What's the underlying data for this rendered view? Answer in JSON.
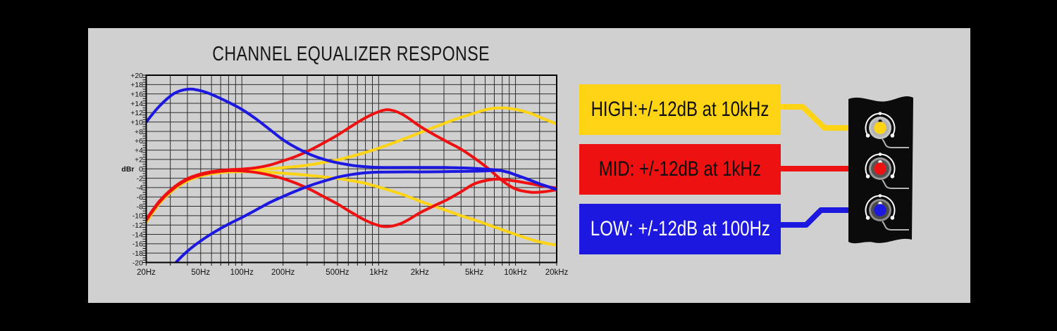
{
  "page": {
    "background": "#000000",
    "panel_bg": "#d0d0d0"
  },
  "chart_data": {
    "type": "line",
    "title": "CHANNEL EQUALIZER RESPONSE",
    "ylabel": "dBr",
    "x_scale": "log",
    "xlim": [
      20,
      20000
    ],
    "ylim": [
      -20,
      20
    ],
    "grid": true,
    "x_ticks": [
      {
        "f": 20,
        "label": "20Hz"
      },
      {
        "f": 50,
        "label": "50Hz"
      },
      {
        "f": 100,
        "label": "100Hz"
      },
      {
        "f": 200,
        "label": "200Hz"
      },
      {
        "f": 500,
        "label": "500Hz"
      },
      {
        "f": 1000,
        "label": "1kHz"
      },
      {
        "f": 2000,
        "label": "2kHz"
      },
      {
        "f": 5000,
        "label": "5kHz"
      },
      {
        "f": 10000,
        "label": "10kHz"
      },
      {
        "f": 20000,
        "label": "20kHz"
      }
    ],
    "y_ticks": [
      {
        "v": 20,
        "label": "+20"
      },
      {
        "v": 18,
        "label": "+18"
      },
      {
        "v": 16,
        "label": "+16"
      },
      {
        "v": 14,
        "label": "+14"
      },
      {
        "v": 12,
        "label": "+12"
      },
      {
        "v": 10,
        "label": "+10"
      },
      {
        "v": 8,
        "label": "+8"
      },
      {
        "v": 6,
        "label": "+6"
      },
      {
        "v": 4,
        "label": "+4"
      },
      {
        "v": 2,
        "label": "+2"
      },
      {
        "v": 0,
        "label": "0"
      },
      {
        "v": -2,
        "label": "-2"
      },
      {
        "v": -4,
        "label": "-4"
      },
      {
        "v": -6,
        "label": "-6"
      },
      {
        "v": -8,
        "label": "-8"
      },
      {
        "v": -10,
        "label": "-10"
      },
      {
        "v": -12,
        "label": "-12"
      },
      {
        "v": -14,
        "label": "-14"
      },
      {
        "v": -16,
        "label": "-16"
      },
      {
        "v": -18,
        "label": "-18"
      },
      {
        "v": -20,
        "label": "-20"
      }
    ],
    "minor_x": [
      20,
      30,
      40,
      50,
      60,
      70,
      80,
      90,
      100,
      200,
      300,
      400,
      500,
      600,
      700,
      800,
      900,
      1000,
      2000,
      3000,
      4000,
      5000,
      6000,
      7000,
      8000,
      9000,
      10000,
      15000,
      20000
    ],
    "series": [
      {
        "id": "high-boost",
        "name": "HIGH boost",
        "color": "#ffd414",
        "width": 4,
        "points": [
          [
            20,
            -11.2
          ],
          [
            25,
            -7.2
          ],
          [
            32,
            -4.2
          ],
          [
            40,
            -2.4
          ],
          [
            50,
            -1.4
          ],
          [
            63,
            -0.8
          ],
          [
            80,
            -0.45
          ],
          [
            100,
            -0.3
          ],
          [
            125,
            -0.15
          ],
          [
            160,
            0
          ],
          [
            200,
            0.25
          ],
          [
            250,
            0.5
          ],
          [
            320,
            0.9
          ],
          [
            400,
            1.4
          ],
          [
            500,
            1.9
          ],
          [
            640,
            2.7
          ],
          [
            800,
            3.5
          ],
          [
            1000,
            4.4
          ],
          [
            1300,
            5.6
          ],
          [
            1600,
            6.6
          ],
          [
            2000,
            7.7
          ],
          [
            2500,
            8.8
          ],
          [
            3200,
            10
          ],
          [
            4000,
            11
          ],
          [
            5000,
            11.9
          ],
          [
            6400,
            12.8
          ],
          [
            8000,
            13
          ],
          [
            10000,
            12.7
          ],
          [
            13000,
            11.8
          ],
          [
            16000,
            10.7
          ],
          [
            20000,
            9.6
          ]
        ]
      },
      {
        "id": "high-cut",
        "name": "HIGH cut",
        "color": "#ffd414",
        "width": 4,
        "points": [
          [
            20,
            -11.4
          ],
          [
            25,
            -7.4
          ],
          [
            32,
            -4.4
          ],
          [
            40,
            -2.6
          ],
          [
            50,
            -1.55
          ],
          [
            63,
            -0.95
          ],
          [
            80,
            -0.65
          ],
          [
            100,
            -0.6
          ],
          [
            125,
            -0.65
          ],
          [
            160,
            -0.75
          ],
          [
            200,
            -0.95
          ],
          [
            250,
            -1.15
          ],
          [
            320,
            -1.45
          ],
          [
            400,
            -1.75
          ],
          [
            500,
            -2.05
          ],
          [
            640,
            -2.55
          ],
          [
            800,
            -3.1
          ],
          [
            1000,
            -3.9
          ],
          [
            1300,
            -4.9
          ],
          [
            1600,
            -5.8
          ],
          [
            2000,
            -6.9
          ],
          [
            2500,
            -7.9
          ],
          [
            3200,
            -9
          ],
          [
            4000,
            -10
          ],
          [
            5000,
            -10.9
          ],
          [
            6400,
            -12
          ],
          [
            8000,
            -13
          ],
          [
            10000,
            -14
          ],
          [
            13000,
            -15.1
          ],
          [
            16000,
            -15.8
          ],
          [
            20000,
            -16.3
          ]
        ]
      },
      {
        "id": "mid-boost",
        "name": "MID boost",
        "color": "#ee1111",
        "width": 4,
        "points": [
          [
            20,
            -10.8
          ],
          [
            25,
            -6.9
          ],
          [
            32,
            -3.9
          ],
          [
            40,
            -2.1
          ],
          [
            50,
            -1.1
          ],
          [
            63,
            -0.5
          ],
          [
            80,
            -0.2
          ],
          [
            100,
            -0.05
          ],
          [
            125,
            0.2
          ],
          [
            160,
            0.8
          ],
          [
            200,
            1.7
          ],
          [
            250,
            2.7
          ],
          [
            320,
            4.1
          ],
          [
            400,
            5.6
          ],
          [
            500,
            7.2
          ],
          [
            640,
            9.2
          ],
          [
            800,
            10.9
          ],
          [
            1000,
            12.2
          ],
          [
            1200,
            12.6
          ],
          [
            1500,
            11.6
          ],
          [
            2000,
            9.1
          ],
          [
            2500,
            7.4
          ],
          [
            3200,
            5.7
          ],
          [
            4000,
            4.2
          ],
          [
            5000,
            2.3
          ],
          [
            6300,
            0.1
          ],
          [
            8000,
            -2.5
          ],
          [
            10000,
            -4.3
          ],
          [
            13000,
            -5
          ],
          [
            16000,
            -4.9
          ],
          [
            20000,
            -4.5
          ]
        ]
      },
      {
        "id": "mid-cut",
        "name": "MID cut",
        "color": "#ee1111",
        "width": 4,
        "points": [
          [
            20,
            -11
          ],
          [
            25,
            -7.1
          ],
          [
            32,
            -4.1
          ],
          [
            40,
            -2.3
          ],
          [
            50,
            -1.3
          ],
          [
            63,
            -0.7
          ],
          [
            80,
            -0.4
          ],
          [
            100,
            -0.45
          ],
          [
            125,
            -0.75
          ],
          [
            160,
            -1.35
          ],
          [
            200,
            -2.1
          ],
          [
            250,
            -3.1
          ],
          [
            320,
            -4.5
          ],
          [
            400,
            -6
          ],
          [
            500,
            -7.5
          ],
          [
            640,
            -9.4
          ],
          [
            800,
            -11
          ],
          [
            1000,
            -12.1
          ],
          [
            1200,
            -12.3
          ],
          [
            1500,
            -11.5
          ],
          [
            2000,
            -9.4
          ],
          [
            2500,
            -8
          ],
          [
            3200,
            -6.5
          ],
          [
            4000,
            -4.9
          ],
          [
            5000,
            -3.2
          ],
          [
            6300,
            -2.4
          ],
          [
            7500,
            -2.2
          ],
          [
            10000,
            -2.6
          ],
          [
            13000,
            -3.2
          ],
          [
            16000,
            -3.7
          ],
          [
            20000,
            -4.1
          ]
        ]
      },
      {
        "id": "low-boost",
        "name": "LOW boost",
        "color": "#1c18e0",
        "width": 4,
        "points": [
          [
            20,
            10
          ],
          [
            25,
            13.4
          ],
          [
            32,
            16.1
          ],
          [
            40,
            17
          ],
          [
            48,
            16.8
          ],
          [
            60,
            15.9
          ],
          [
            80,
            14.2
          ],
          [
            100,
            12.7
          ],
          [
            125,
            10.8
          ],
          [
            160,
            8.4
          ],
          [
            200,
            6.2
          ],
          [
            250,
            4.5
          ],
          [
            320,
            3
          ],
          [
            400,
            2
          ],
          [
            500,
            1.3
          ],
          [
            640,
            0.75
          ],
          [
            800,
            0.45
          ],
          [
            1000,
            0.3
          ],
          [
            1500,
            0.3
          ],
          [
            2000,
            0.3
          ],
          [
            3000,
            0.3
          ],
          [
            4000,
            0.2
          ],
          [
            5000,
            0.1
          ],
          [
            6000,
            -0.05
          ],
          [
            7600,
            -0.3
          ],
          [
            9000,
            -0.8
          ],
          [
            10000,
            -1.3
          ],
          [
            12000,
            -2.1
          ],
          [
            15000,
            -3.2
          ],
          [
            20000,
            -4.4
          ]
        ]
      },
      {
        "id": "low-cut",
        "name": "LOW cut",
        "color": "#1c18e0",
        "width": 4,
        "points": [
          [
            29,
            -22
          ],
          [
            33,
            -20
          ],
          [
            40,
            -17.6
          ],
          [
            50,
            -15.4
          ],
          [
            63,
            -13.5
          ],
          [
            80,
            -11.8
          ],
          [
            100,
            -10.4
          ],
          [
            125,
            -8.9
          ],
          [
            160,
            -7.2
          ],
          [
            200,
            -5.9
          ],
          [
            250,
            -4.7
          ],
          [
            320,
            -3.5
          ],
          [
            400,
            -2.6
          ],
          [
            500,
            -1.8
          ],
          [
            640,
            -1.2
          ],
          [
            800,
            -0.85
          ],
          [
            1000,
            -0.7
          ],
          [
            1500,
            -0.65
          ],
          [
            2000,
            -0.65
          ],
          [
            3000,
            -0.6
          ],
          [
            4000,
            -0.55
          ],
          [
            5000,
            -0.5
          ],
          [
            6000,
            -0.45
          ],
          [
            7600,
            -0.35
          ],
          [
            9000,
            -0.8
          ],
          [
            10000,
            -1.3
          ],
          [
            12000,
            -2.1
          ],
          [
            15000,
            -3.2
          ],
          [
            20000,
            -4.4
          ]
        ]
      }
    ]
  },
  "legend": [
    {
      "id": "high",
      "label": "HIGH:+/-12dB at 10kHz",
      "bg": "#ffd414",
      "fg": "#0f0f0f"
    },
    {
      "id": "mid",
      "label": "MID: +/-12dB at 1kHz",
      "bg": "#ee1111",
      "fg": "#0f0f0f"
    },
    {
      "id": "low",
      "label": "LOW: +/-12dB at 100Hz",
      "bg": "#1c18e0",
      "fg": "#ffffff"
    }
  ],
  "knob_panel": {
    "panel_color": "#0b0b0b",
    "knobs": [
      {
        "id": "high-knob",
        "name": "HIGH knob",
        "dot": "#ffd414",
        "ring": "#c6c6c6",
        "face": "#b4b4b4",
        "indicator": "#1a1a1a"
      },
      {
        "id": "mid-knob",
        "name": "MID knob",
        "dot": "#ee1111",
        "ring": "#9a9a9a",
        "face": "#555555",
        "indicator": "#ffffff"
      },
      {
        "id": "low-knob",
        "name": "LOW knob",
        "dot": "#1c18e0",
        "ring": "#8e8e8e",
        "face": "#4a4a4a",
        "indicator": "#ffffff"
      }
    ]
  }
}
